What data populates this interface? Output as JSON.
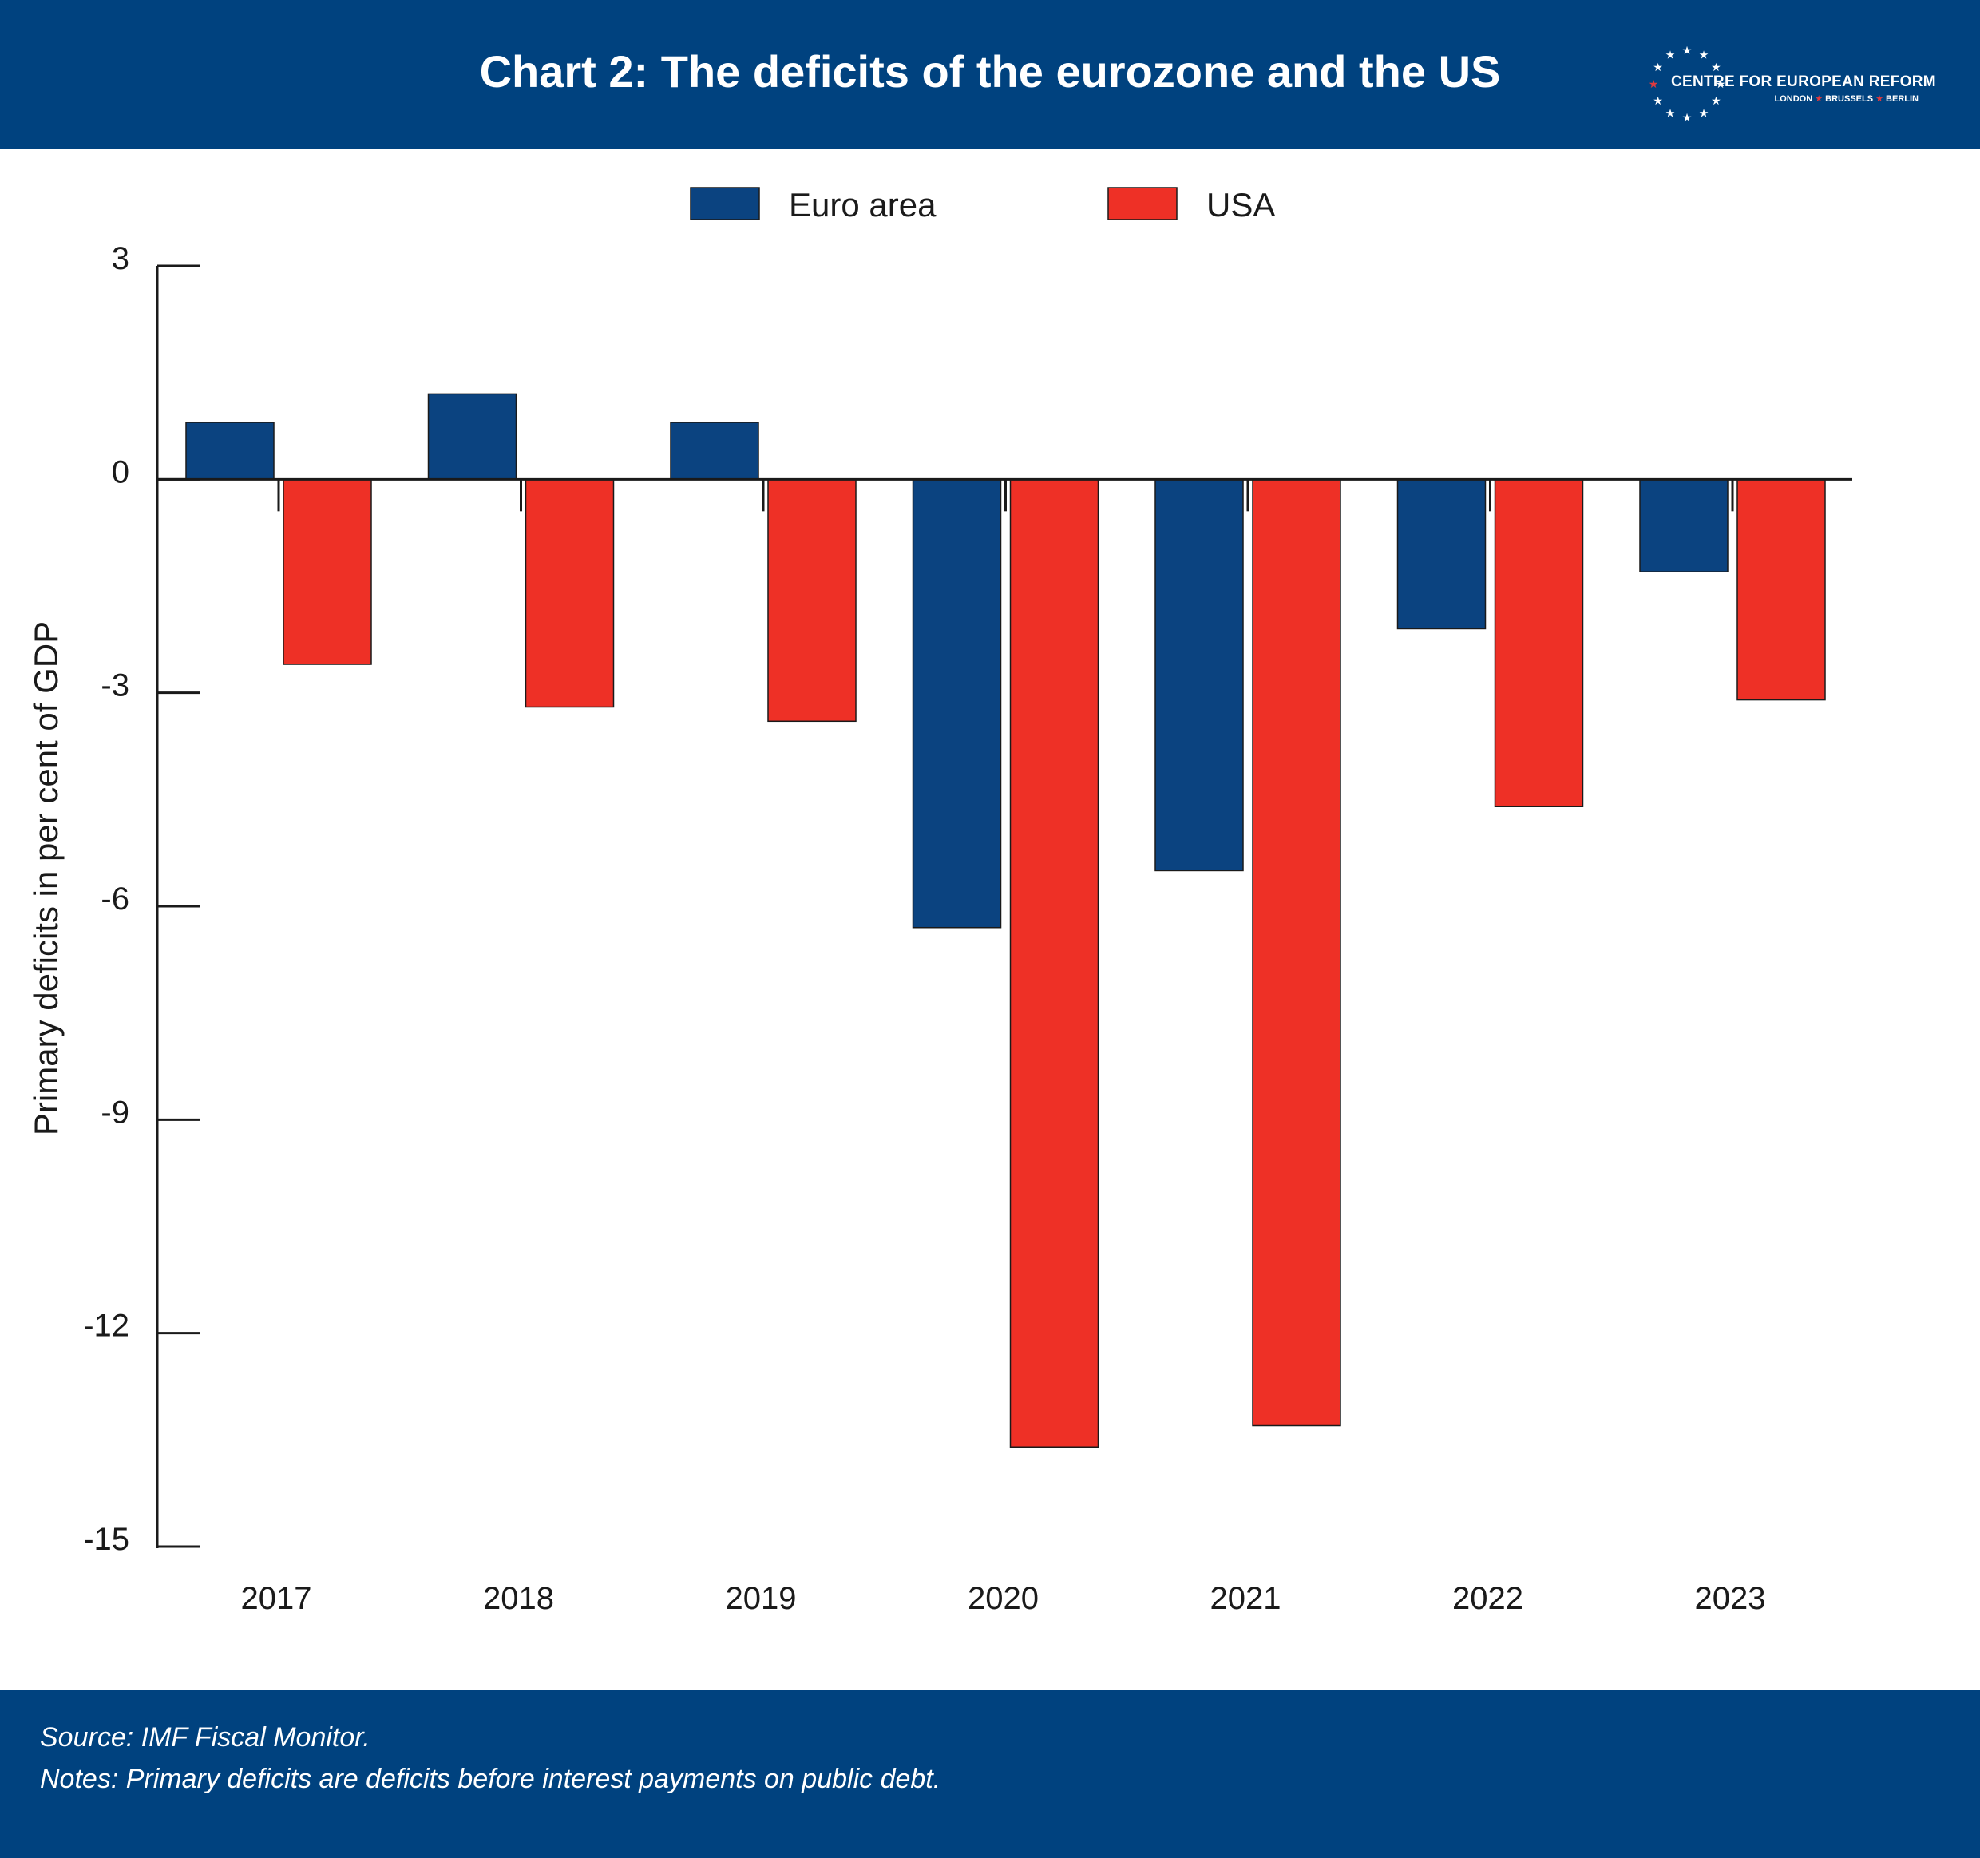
{
  "header": {
    "title": "Chart 2: The deficits of the eurozone and the US",
    "logo": {
      "name": "CENTRE FOR EUROPEAN REFORM",
      "cities": [
        "LONDON",
        "BRUSSELS",
        "BERLIN"
      ]
    }
  },
  "colors": {
    "header_bg": "#00427f",
    "euro_area": "#0b4380",
    "usa": "#ee3026",
    "star_accent": "#e03a3e"
  },
  "chart_data": {
    "type": "bar",
    "title": "Chart 2: The deficits of the eurozone and the US",
    "ylabel": "Primary deficits in per cent of GDP",
    "xlabel": "",
    "categories": [
      "2017",
      "2018",
      "2019",
      "2020",
      "2021",
      "2022",
      "2023"
    ],
    "series": [
      {
        "name": "Euro area",
        "color": "#0b4380",
        "values": [
          0.8,
          1.2,
          0.8,
          -6.3,
          -5.5,
          -2.1,
          -1.3
        ]
      },
      {
        "name": "USA",
        "color": "#ee3026",
        "values": [
          -2.6,
          -3.2,
          -3.4,
          -13.6,
          -13.3,
          -4.6,
          -3.1
        ]
      }
    ],
    "ylim": [
      -15,
      3
    ],
    "yticks": [
      3,
      0,
      -3,
      -6,
      -9,
      -12,
      -15
    ],
    "ytick_labels": [
      "3",
      "0",
      "-3",
      "-6",
      "-9",
      "-12",
      "-15"
    ],
    "legend": "top-center",
    "grid": false
  },
  "footer": {
    "source": "Source: IMF Fiscal Monitor.",
    "notes": "Notes: Primary deficits are deficits before interest payments on public debt."
  }
}
